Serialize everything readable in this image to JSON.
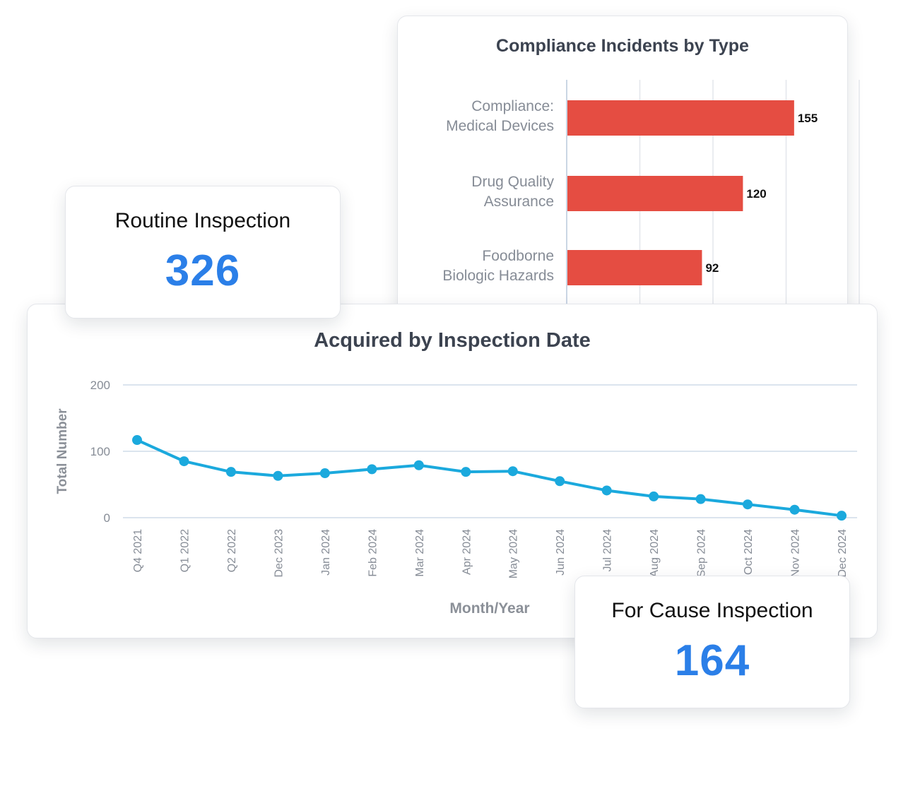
{
  "routine": {
    "label": "Routine Inspection",
    "value": "326"
  },
  "for_cause": {
    "label": "For Cause Inspection",
    "value": "164"
  },
  "colors": {
    "bar": "#e54d42",
    "line": "#1ba9dd",
    "value_text": "#2b7fe8"
  },
  "chart_data": [
    {
      "type": "bar",
      "orientation": "horizontal",
      "title": "Compliance Incidents by Type",
      "categories": [
        [
          "Compliance:",
          "Medical Devices"
        ],
        [
          "Drug Quality",
          "Assurance"
        ],
        [
          "Foodborne",
          "Biologic Hazards"
        ]
      ],
      "values": [
        155,
        120,
        92
      ],
      "data_labels": [
        "155",
        "120",
        "92"
      ],
      "grid": true
    },
    {
      "type": "line",
      "title": "Acquired by Inspection Date",
      "xlabel": "Month/Year",
      "ylabel": "Total Number",
      "ylim": [
        0,
        200
      ],
      "yticks": [
        "0",
        "100",
        "200"
      ],
      "x": [
        "Q4 2021",
        "Q1 2022",
        "Q2 2022",
        "Dec 2023",
        "Jan 2024",
        "Feb 2024",
        "Mar 2024",
        "Apr 2024",
        "May 2024",
        "Jun 2024",
        "Jul 2024",
        "Aug 2024",
        "Sep 2024",
        "Oct 2024",
        "Nov 2024",
        "Dec 2024"
      ],
      "values": [
        117,
        85,
        69,
        63,
        67,
        73,
        79,
        69,
        70,
        55,
        41,
        32,
        28,
        20,
        12,
        3
      ],
      "grid": true
    }
  ]
}
